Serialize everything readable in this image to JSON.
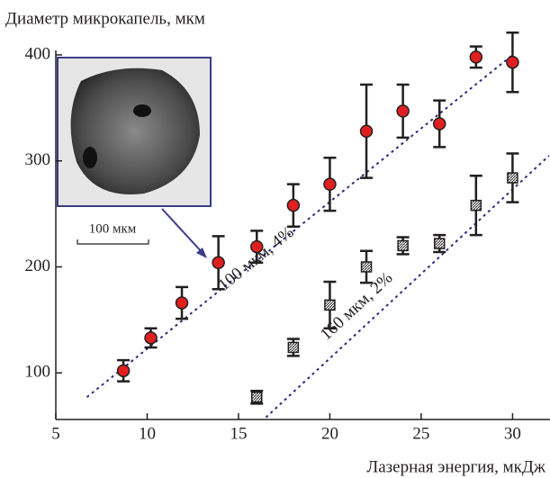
{
  "chart_data": {
    "type": "scatter",
    "y_label": "Диаметр микрокапель, мкм",
    "x_label": "Лазерная энергия, мкДж",
    "xlim": [
      5,
      32
    ],
    "ylim": [
      56,
      400
    ],
    "xticks": [
      5,
      10,
      15,
      20,
      25,
      30
    ],
    "yticks": [
      100,
      200,
      300,
      400
    ],
    "series": [
      {
        "name": "100 мкм, 4%",
        "color": "#e02020",
        "marker": "circle",
        "x": [
          8.7,
          10.2,
          11.9,
          13.9,
          16,
          18,
          20,
          22,
          24,
          26,
          28,
          30
        ],
        "values": [
          102,
          133,
          166,
          204,
          219,
          258,
          278,
          328,
          347,
          335,
          398,
          393
        ],
        "errors": [
          10,
          9,
          15,
          25,
          15,
          20,
          25,
          44,
          25,
          22,
          10,
          28
        ],
        "fit": {
          "x": [
            6.7,
            30
          ],
          "y": [
            77,
            400
          ]
        }
      },
      {
        "name": "160 мкм, 2%",
        "color": "#ffffff",
        "marker": "square",
        "x": [
          16,
          18,
          20,
          22,
          24,
          26,
          28,
          30
        ],
        "values": [
          77,
          124,
          164,
          200,
          220,
          222,
          258,
          284
        ],
        "errors": [
          6,
          8,
          22,
          15,
          8,
          8,
          28,
          23
        ],
        "fit": {
          "x": [
            16.5,
            32
          ],
          "y": [
            58,
            305
          ]
        }
      }
    ],
    "inset_scale_label": "100 мкм"
  }
}
